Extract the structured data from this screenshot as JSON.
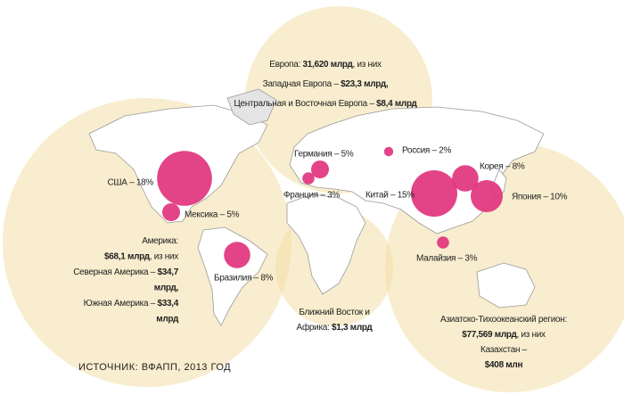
{
  "regions": [
    {
      "lines": [
        [
          {
            "text": "Европа: "
          },
          {
            "text": "31,620 млрд",
            "bold": true
          },
          {
            "text": ", из них"
          }
        ],
        [
          {
            "text": "Западная Европа – "
          },
          {
            "text": "$23,3 млрд,",
            "bold": true
          }
        ],
        [
          {
            "text": "Центральная и Восточная Европа – "
          },
          {
            "text": "$8,4 млрд",
            "bold": true
          }
        ]
      ]
    },
    {
      "lines": [
        [
          {
            "text": "Америка:"
          }
        ],
        [
          {
            "text": "$68,1 млрд",
            "bold": true
          },
          {
            "text": ", из них"
          }
        ],
        [
          {
            "text": "Северная Америка – "
          },
          {
            "text": "$34,7",
            "bold": true
          }
        ],
        [
          {
            "text": "млрд,",
            "bold": true
          }
        ],
        [
          {
            "text": "Южная Америка – "
          },
          {
            "text": "$33,4",
            "bold": true
          }
        ],
        [
          {
            "text": "млрд",
            "bold": true
          }
        ]
      ]
    },
    {
      "lines": [
        [
          {
            "text": "Ближний Восток и"
          }
        ],
        [
          {
            "text": "Африка: "
          },
          {
            "text": "$1,3 млрд",
            "bold": true
          }
        ]
      ]
    },
    {
      "lines": [
        [
          {
            "text": "Азиатско-Тихоокеанский регион:"
          }
        ],
        [
          {
            "text": "$77,569 млрд",
            "bold": true
          },
          {
            "text": ", из них"
          }
        ],
        [
          {
            "text": "Казахстан –"
          }
        ],
        [
          {
            "text": "$408 млн",
            "bold": true
          }
        ]
      ]
    }
  ],
  "markers": [
    {
      "label": "США – 18%",
      "value": 18
    },
    {
      "label": "Мексика – 5%",
      "value": 5
    },
    {
      "label": "Бразилия – 8%",
      "value": 8
    },
    {
      "label": "Германия – 5%",
      "value": 5
    },
    {
      "label": "Франция – 3%",
      "value": 3
    },
    {
      "label": "Россия – 2%",
      "value": 2
    },
    {
      "label": "Китай – 15%",
      "value": 15
    },
    {
      "label": "Корея – 8%",
      "value": 8
    },
    {
      "label": "Япония – 10%",
      "value": 10
    },
    {
      "label": "Малайзия – 3%",
      "value": 3
    }
  ],
  "marker_color": "#e0307a",
  "source": "ИСТОЧНИК: ВФАПП, 2013 ГОД"
}
